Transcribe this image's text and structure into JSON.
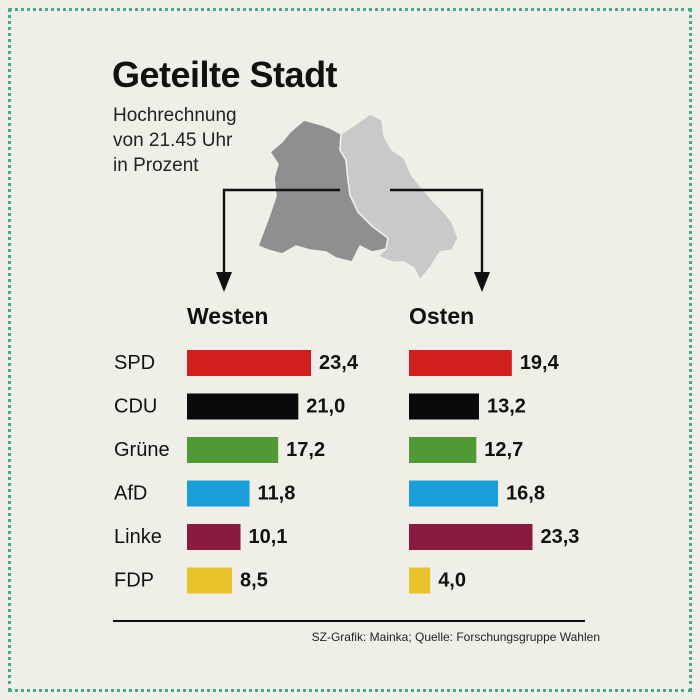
{
  "title": "Geteilte Stadt",
  "subtitle": [
    "Hochrechnung",
    "von 21.45 Uhr",
    "in Prozent"
  ],
  "source": "SZ-Grafik: Mainka; Quelle: Forschungsgruppe Wahlen",
  "colors": {
    "background": "#f0efe7",
    "border": "#3fae8f",
    "west_map": "#8f8f8f",
    "east_map": "#c9c9c9"
  },
  "chart_data": {
    "type": "bar",
    "orientation": "horizontal",
    "title": "Geteilte Stadt",
    "categories": [
      "SPD",
      "CDU",
      "Grüne",
      "AfD",
      "Linke",
      "FDP"
    ],
    "category_colors": [
      "#d21f1f",
      "#0a0a0a",
      "#4f9a34",
      "#189fd9",
      "#8b1a3f",
      "#e8c22a"
    ],
    "series": [
      {
        "name": "Westen",
        "values": [
          23.4,
          21.0,
          17.2,
          11.8,
          10.1,
          8.5
        ],
        "labels": [
          "23,4",
          "21,0",
          "17,2",
          "11,8",
          "10,1",
          "8,5"
        ]
      },
      {
        "name": "Osten",
        "values": [
          19.4,
          13.2,
          12.7,
          16.8,
          23.3,
          4.0
        ],
        "labels": [
          "19,4",
          "13,2",
          "12,7",
          "16,8",
          "23,3",
          "4,0"
        ]
      }
    ],
    "grid": false,
    "legend": "none"
  }
}
